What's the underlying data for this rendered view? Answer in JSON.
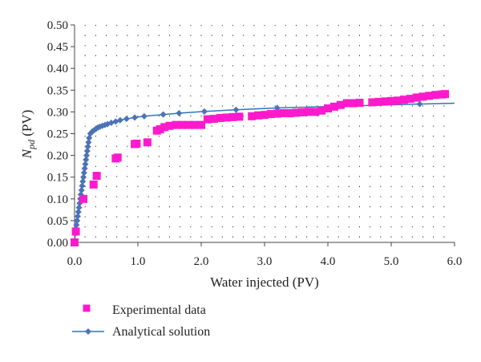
{
  "chart_data": {
    "type": "scatter",
    "x_axis": {
      "label": "Water injected (PV)",
      "range": [
        0.0,
        6.0
      ],
      "ticks": [
        "0.0",
        "1.0",
        "2.0",
        "3.0",
        "4.0",
        "5.0",
        "6.0"
      ]
    },
    "y_axis": {
      "label_main": "N",
      "label_sub": "pd",
      "label_unit": " (PV)",
      "range": [
        0.0,
        0.5
      ],
      "ticks": [
        "0.00",
        "0.05",
        "0.10",
        "0.15",
        "0.20",
        "0.25",
        "0.30",
        "0.35",
        "0.40",
        "0.45",
        "0.50"
      ]
    },
    "grid": "dotted",
    "legend_position": "bottom-left",
    "series": [
      {
        "name": "Experimental data",
        "marker": "square",
        "color": "#ff19cc",
        "points": [
          [
            0.0,
            0.0
          ],
          [
            0.02,
            0.025
          ],
          [
            0.14,
            0.1
          ],
          [
            0.3,
            0.133
          ],
          [
            0.35,
            0.153
          ],
          [
            0.65,
            0.193
          ],
          [
            0.68,
            0.195
          ],
          [
            0.95,
            0.226
          ],
          [
            0.98,
            0.227
          ],
          [
            1.15,
            0.23
          ],
          [
            1.3,
            0.257
          ],
          [
            1.35,
            0.26
          ],
          [
            1.42,
            0.265
          ],
          [
            1.5,
            0.268
          ],
          [
            1.6,
            0.27
          ],
          [
            1.7,
            0.27
          ],
          [
            1.8,
            0.27
          ],
          [
            1.9,
            0.27
          ],
          [
            2.0,
            0.27
          ],
          [
            2.1,
            0.283
          ],
          [
            2.2,
            0.284
          ],
          [
            2.3,
            0.286
          ],
          [
            2.4,
            0.287
          ],
          [
            2.5,
            0.288
          ],
          [
            2.6,
            0.289
          ],
          [
            2.8,
            0.29
          ],
          [
            2.9,
            0.292
          ],
          [
            3.0,
            0.293
          ],
          [
            3.1,
            0.295
          ],
          [
            3.2,
            0.296
          ],
          [
            3.3,
            0.297
          ],
          [
            3.4,
            0.297
          ],
          [
            3.5,
            0.298
          ],
          [
            3.6,
            0.299
          ],
          [
            3.7,
            0.3
          ],
          [
            3.8,
            0.3
          ],
          [
            3.9,
            0.303
          ],
          [
            4.0,
            0.308
          ],
          [
            4.1,
            0.312
          ],
          [
            4.2,
            0.316
          ],
          [
            4.3,
            0.32
          ],
          [
            4.4,
            0.32
          ],
          [
            4.5,
            0.321
          ],
          [
            4.7,
            0.322
          ],
          [
            4.8,
            0.323
          ],
          [
            4.9,
            0.324
          ],
          [
            5.0,
            0.325
          ],
          [
            5.1,
            0.326
          ],
          [
            5.2,
            0.328
          ],
          [
            5.3,
            0.33
          ],
          [
            5.4,
            0.333
          ],
          [
            5.5,
            0.335
          ],
          [
            5.6,
            0.337
          ],
          [
            5.7,
            0.339
          ],
          [
            5.8,
            0.34
          ],
          [
            5.85,
            0.341
          ]
        ]
      },
      {
        "name": "Analytical solution",
        "marker": "diamond",
        "line": true,
        "color": "#2e75b6",
        "marker_color": "#4a73b8",
        "points": [
          [
            0.0,
            0.0
          ],
          [
            0.01,
            0.02
          ],
          [
            0.02,
            0.03
          ],
          [
            0.03,
            0.04
          ],
          [
            0.04,
            0.05
          ],
          [
            0.05,
            0.06
          ],
          [
            0.06,
            0.07
          ],
          [
            0.07,
            0.08
          ],
          [
            0.08,
            0.09
          ],
          [
            0.09,
            0.1
          ],
          [
            0.1,
            0.11
          ],
          [
            0.11,
            0.12
          ],
          [
            0.12,
            0.13
          ],
          [
            0.13,
            0.14
          ],
          [
            0.14,
            0.15
          ],
          [
            0.15,
            0.16
          ],
          [
            0.16,
            0.17
          ],
          [
            0.17,
            0.18
          ],
          [
            0.18,
            0.19
          ],
          [
            0.19,
            0.2
          ],
          [
            0.2,
            0.21
          ],
          [
            0.21,
            0.22
          ],
          [
            0.22,
            0.23
          ],
          [
            0.23,
            0.24
          ],
          [
            0.25,
            0.25
          ],
          [
            0.28,
            0.255
          ],
          [
            0.31,
            0.258
          ],
          [
            0.34,
            0.261
          ],
          [
            0.37,
            0.264
          ],
          [
            0.4,
            0.266
          ],
          [
            0.44,
            0.268
          ],
          [
            0.48,
            0.27
          ],
          [
            0.52,
            0.272
          ],
          [
            0.58,
            0.275
          ],
          [
            0.65,
            0.278
          ],
          [
            0.72,
            0.281
          ],
          [
            0.82,
            0.284
          ],
          [
            0.95,
            0.287
          ],
          [
            1.1,
            0.29
          ],
          [
            1.4,
            0.294
          ],
          [
            1.65,
            0.297
          ],
          [
            2.05,
            0.301
          ],
          [
            2.55,
            0.305
          ],
          [
            3.2,
            0.309
          ],
          [
            5.45,
            0.318
          ]
        ],
        "line_end": [
          6.0,
          0.32
        ]
      }
    ]
  }
}
